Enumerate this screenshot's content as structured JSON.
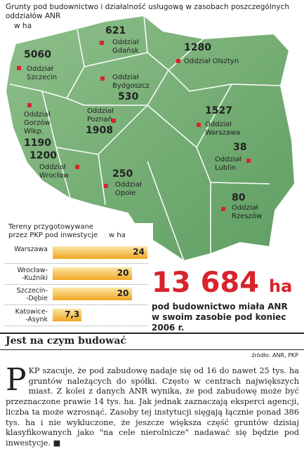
{
  "title": "Grunty pod budownictwo i działalność usługową w zasobach poszczególnych\noddziałów ANR",
  "unit": "w ha",
  "regions": [
    {
      "label": "Oddział\nSzczecin",
      "value": 5060
    },
    {
      "label": "Oddział\nGdańsk",
      "value": 621
    },
    {
      "label": "Oddział Olsztyn",
      "value": 1280
    },
    {
      "label": "Oddział\nBydgoszcz",
      "value": 530
    },
    {
      "label": "Oddział\nGorzów\nWlkp.",
      "value": 1190
    },
    {
      "label": "Oddział\nPoznań",
      "value": 1908
    },
    {
      "label": "Oddział\nWarszawa",
      "value": 1527
    },
    {
      "label": "Oddział\nWrocław",
      "value": 1200
    },
    {
      "label": "Oddział\nOpole",
      "value": 250
    },
    {
      "label": "Oddział\nLublin",
      "value": 38
    },
    {
      "label": "Oddział\nRzeszów",
      "value": 80
    }
  ],
  "chart_data": {
    "type": "bar",
    "orientation": "horizontal",
    "title": "Tereny przygotowywane\nprzez PKP pod inwestycje",
    "unit": "w ha",
    "categories": [
      "Warszawa",
      "Wrocław-\n-Kuźniki",
      "Szczecin-\n-Dębie",
      "Katowice-\n-Asynk"
    ],
    "values": [
      24,
      20,
      20,
      7.3
    ],
    "value_labels": [
      "24",
      "20",
      "20",
      "7,3"
    ],
    "color": "#f2a623",
    "xlim": [
      0,
      24
    ]
  },
  "highlight": {
    "number": "13 684",
    "unit": "ha",
    "caption": "pod budownictwo miała ANR\nw swoim zasobie pod koniec 2006 r."
  },
  "article": {
    "heading": "Jest na czym budować",
    "source": "źródło: ANR, PKP",
    "dropcap": "P",
    "text": "KP szacuje, że pod zabudowę nadaje się od 16 do nawet 25 tys. ha gruntów należących do spółki. Często w centrach największych miast. Z kolei z danych ANR wynika, że pod zabudowę może być przeznaczone prawie 14 tys. ha. Jak jednak zaznaczają eksperci agencji, liczba ta może wzrosnąć. Zasoby tej instytucji sięgają łącznie ponad 386 tys. ha i nie wykluczone, że jeszcze większa część gruntów dzisiaj klasyfikowanych jako \"na cele nierolnicze\" nadawać się będzie pod inwestycje."
  }
}
